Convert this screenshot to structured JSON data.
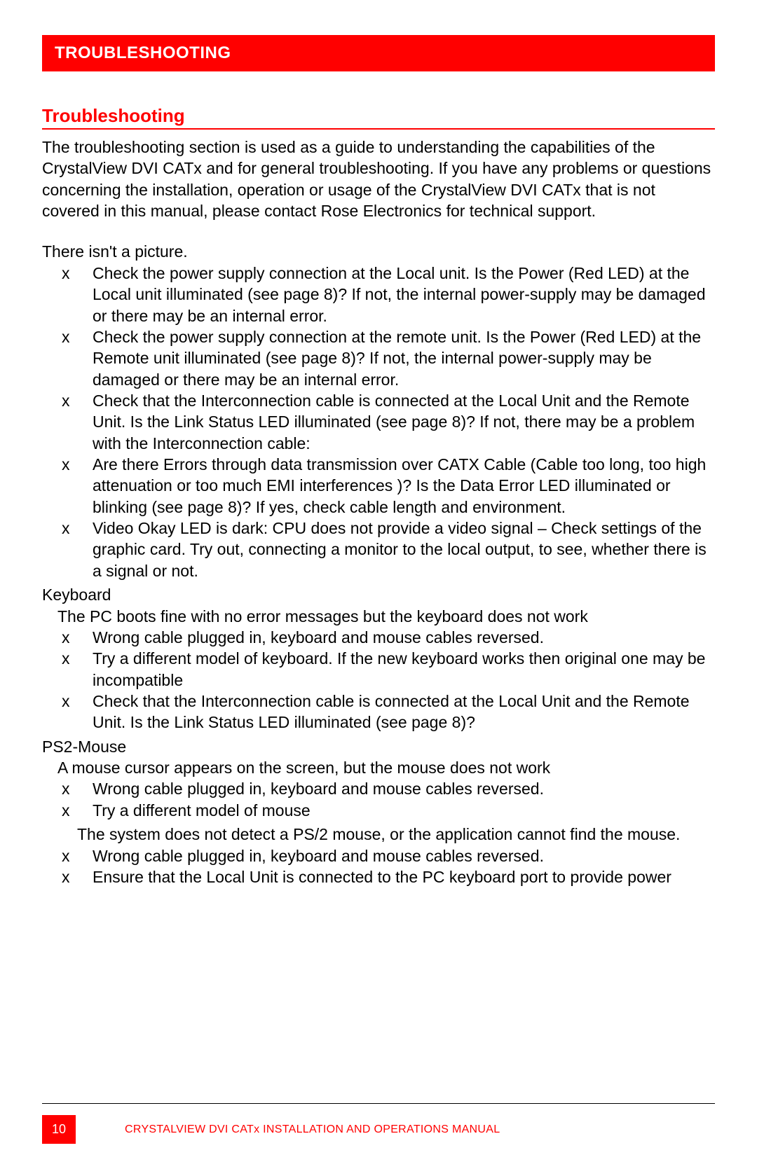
{
  "header": {
    "bar_title": "TROUBLESHOOTING"
  },
  "section": {
    "title": "Troubleshooting",
    "intro": "The troubleshooting section is used as a guide to understanding the capabilities of the CrystalView DVI CATx and for general troubleshooting.  If you have any problems or questions concerning the installation, operation or usage of the CrystalView DVI CATx that is not covered in this manual, please contact Rose Electronics for technical support.",
    "topic1": {
      "heading": "There isn't a picture.",
      "bullets": [
        "Check the power supply connection at the Local unit. Is the Power (Red LED) at the Local unit illuminated (see page 8)? If not, the internal power-supply may be damaged or there may be an internal error.",
        "Check the power supply connection at the remote unit. Is the Power (Red LED) at the Remote unit illuminated (see page 8)? If not, the internal power-supply may be damaged or there may be an internal error.",
        "Check that the Interconnection cable is connected at the Local Unit and the Remote Unit. Is the Link Status LED illuminated (see page 8)? If not, there may be a problem with the Interconnection cable:",
        "Are there Errors through data transmission over CATX Cable (Cable too long, too high attenuation or too much EMI interferences )? Is the Data Error LED illuminated or blinking (see page 8)? If yes, check cable length and environment.",
        "Video Okay LED is dark: CPU does not provide a video signal – Check settings of the graphic card. Try out, connecting a monitor to the local output, to see, whether there is a signal or not."
      ]
    },
    "topic2": {
      "heading": "Keyboard",
      "intro": "The PC boots fine with no error messages but the keyboard does not work",
      "bullets": [
        "Wrong cable plugged in, keyboard and mouse cables reversed.",
        "Try a different model of keyboard. If the new keyboard works then original one may be incompatible",
        "Check that the Interconnection cable is connected at the Local Unit and the Remote Unit. Is the Link Status LED illuminated (see page 8)?"
      ]
    },
    "topic3": {
      "heading": "PS2-Mouse",
      "intro": "A mouse cursor appears on the screen, but the mouse does not work",
      "bullets_a": [
        "Wrong cable plugged in, keyboard and mouse cables reversed.",
        "Try a different model of mouse"
      ],
      "cont": "The system does not detect a PS/2 mouse, or the application cannot find   the mouse.",
      "bullets_b": [
        "Wrong cable plugged in, keyboard and mouse cables reversed.",
        "Ensure that the Local Unit is connected to the PC keyboard port to provide power"
      ]
    }
  },
  "footer": {
    "page_number": "10",
    "manual_title": "CRYSTALVIEW DVI CATx INSTALLATION AND OPERATIONS MANUAL"
  },
  "colors": {
    "brand_red": "#ff0000",
    "text_black": "#000000",
    "bg_white": "#ffffff"
  },
  "typography": {
    "header_bar_fontsize": 24,
    "section_title_fontsize": 26,
    "body_fontsize": 23,
    "footer_text_fontsize": 16,
    "page_num_fontsize": 18
  }
}
